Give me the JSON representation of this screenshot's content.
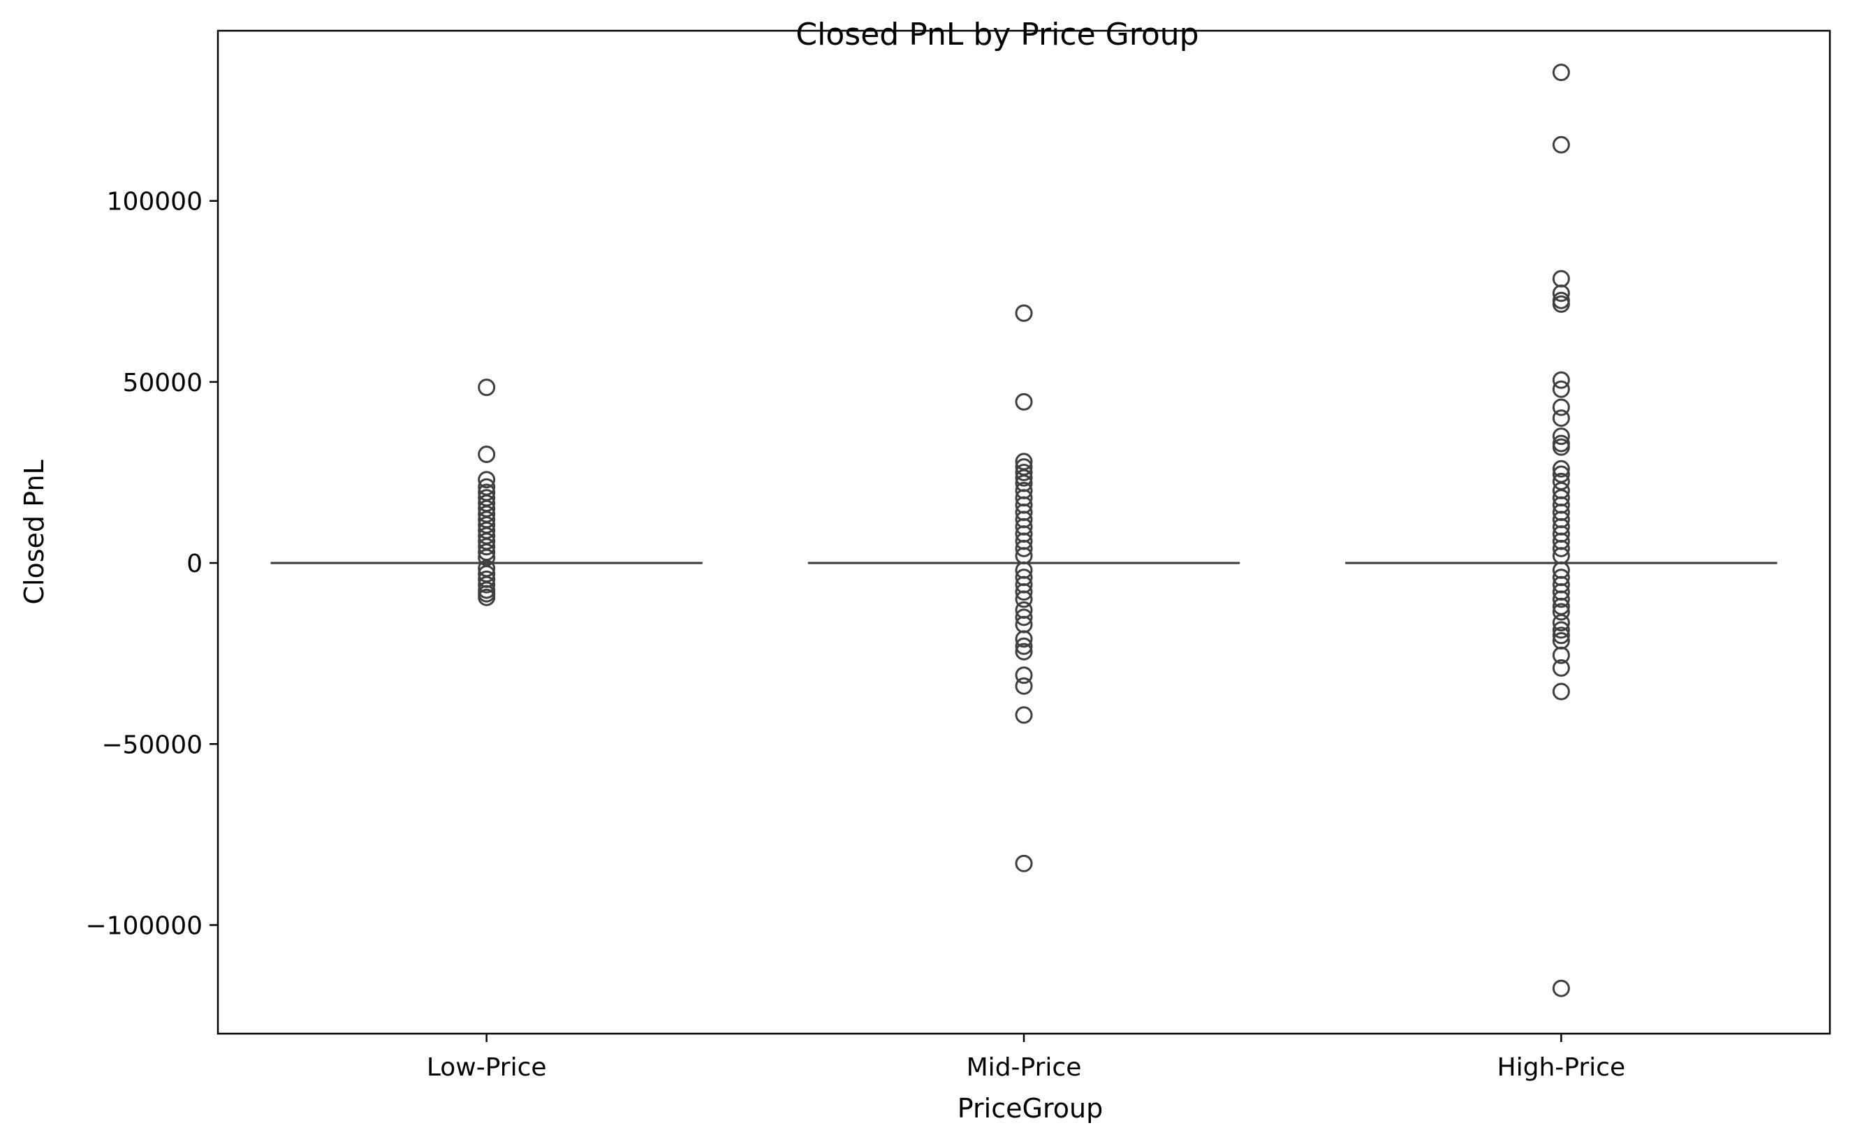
{
  "chart_data": {
    "type": "box",
    "title": "Closed PnL by Price Group",
    "xlabel": "PriceGroup",
    "ylabel": "Closed PnL",
    "categories": [
      "Low-Price",
      "Mid-Price",
      "High-Price"
    ],
    "ylim": [
      -130000,
      147000
    ],
    "yticks": [
      -100000,
      -50000,
      0,
      50000,
      100000
    ],
    "ytick_labels": [
      "−100000",
      "−50000",
      "0",
      "50000",
      "100000"
    ],
    "grid": false,
    "box_color": "#3f3f3f",
    "groups": [
      {
        "category": "Low-Price",
        "q1": 0,
        "median": 0,
        "q3": 0,
        "whisker_low": 0,
        "whisker_high": 0,
        "outliers": [
          48500,
          30000,
          23000,
          21000,
          19500,
          18000,
          16500,
          15000,
          13500,
          12000,
          10500,
          9000,
          7500,
          6000,
          4500,
          3000,
          1500,
          -1500,
          -3000,
          -4500,
          -6000,
          -7500,
          -8500,
          -9500
        ]
      },
      {
        "category": "Mid-Price",
        "q1": 0,
        "median": 0,
        "q3": 0,
        "whisker_low": 0,
        "whisker_high": 0,
        "outliers": [
          69000,
          44500,
          28000,
          26500,
          25000,
          23500,
          22000,
          20000,
          18000,
          16000,
          14000,
          12000,
          10000,
          8000,
          6000,
          4000,
          2000,
          -2000,
          -4000,
          -6000,
          -8000,
          -10000,
          -13000,
          -15000,
          -17000,
          -21000,
          -23000,
          -24500,
          -31000,
          -34000,
          -42000,
          -83000
        ]
      },
      {
        "category": "High-Price",
        "q1": 0,
        "median": 0,
        "q3": 0,
        "whisker_low": 0,
        "whisker_high": 0,
        "outliers": [
          135500,
          115500,
          78500,
          74500,
          72500,
          71500,
          50500,
          48000,
          43000,
          40000,
          35000,
          33000,
          32000,
          26000,
          24500,
          22500,
          20000,
          18000,
          16000,
          14000,
          12000,
          10000,
          8000,
          6000,
          4000,
          2000,
          -2000,
          -4000,
          -6000,
          -8000,
          -10000,
          -12000,
          -13500,
          -16500,
          -18500,
          -20000,
          -21500,
          -25500,
          -29000,
          -35500,
          -117500
        ]
      }
    ]
  }
}
